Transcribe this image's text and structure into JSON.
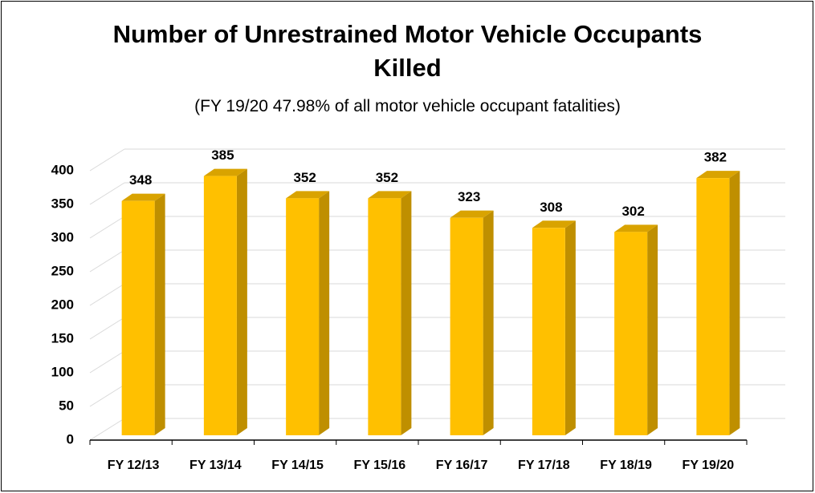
{
  "chart_data": {
    "type": "bar",
    "title": "Number of Unrestrained Motor Vehicle Occupants Killed",
    "subtitle": "(FY 19/20 47.98% of all motor vehicle occupant fatalities)",
    "categories": [
      "FY 12/13",
      "FY 13/14",
      "FY 14/15",
      "FY 15/16",
      "FY 16/17",
      "FY 17/18",
      "FY 18/19",
      "FY 19/20"
    ],
    "values": [
      348,
      385,
      352,
      352,
      323,
      308,
      302,
      382
    ],
    "color": "#FFC000",
    "ylim": [
      0,
      400
    ],
    "yticks": [
      0,
      50,
      100,
      150,
      200,
      250,
      300,
      350,
      400
    ],
    "grid": true
  }
}
